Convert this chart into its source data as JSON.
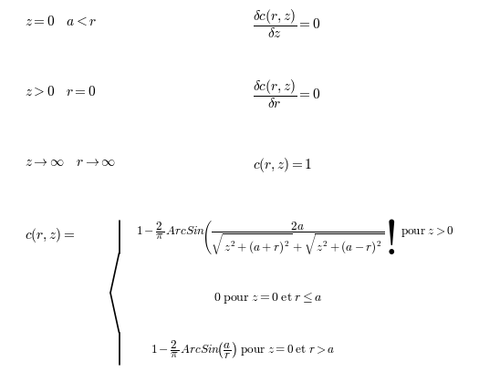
{
  "bg_color": "#ffffff",
  "text_color": "#000000",
  "fig_width": 5.48,
  "fig_height": 4.19,
  "dpi": 100
}
